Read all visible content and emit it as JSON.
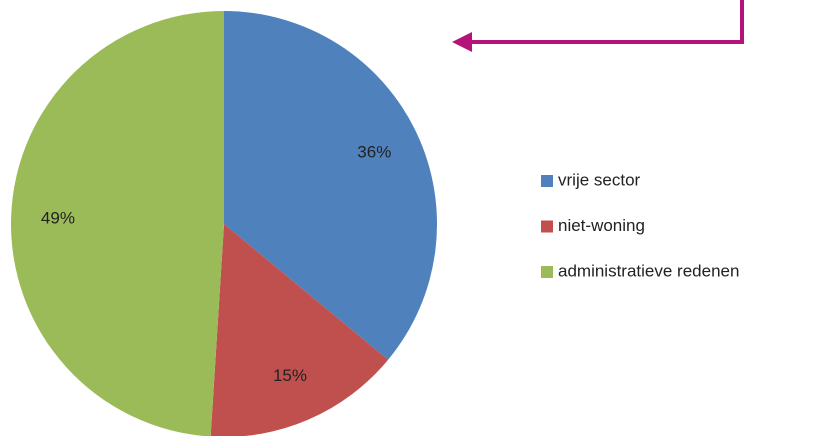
{
  "chart_data": {
    "type": "pie",
    "categories": [
      "vrije sector",
      "niet-woning",
      "administratieve redenen"
    ],
    "values": [
      36,
      15,
      49
    ],
    "value_labels": [
      "36%",
      "15%",
      "49%"
    ],
    "colors": [
      "#4f81bd",
      "#c0504d",
      "#9bbb59"
    ],
    "legend": "right"
  }
}
